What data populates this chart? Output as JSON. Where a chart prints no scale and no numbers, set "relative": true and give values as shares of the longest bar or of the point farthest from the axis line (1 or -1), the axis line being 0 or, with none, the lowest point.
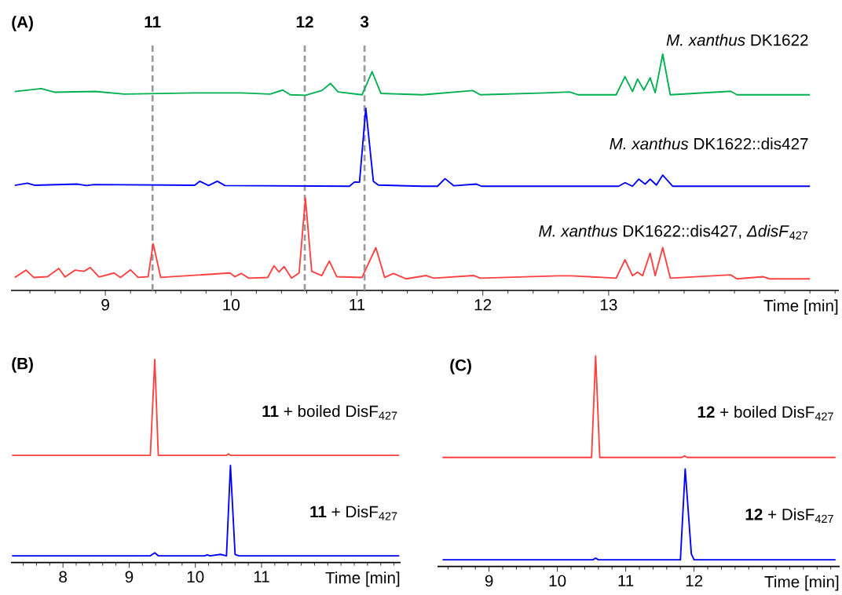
{
  "chart_data": [
    {
      "type": "line",
      "relative": true,
      "title": "(A)",
      "xlabel": "Time [min]",
      "xlim": [
        8.25,
        14.83
      ],
      "xticks": [
        {
          "value": 8.4,
          "label": null
        },
        {
          "value": 8.6,
          "label": null
        },
        {
          "value": 8.8,
          "label": null
        },
        9,
        {
          "value": 9.2,
          "label": null
        },
        {
          "value": 9.4,
          "label": null
        },
        {
          "value": 9.6,
          "label": null
        },
        {
          "value": 9.8,
          "label": null
        },
        10,
        {
          "value": 10.2,
          "label": null
        },
        {
          "value": 10.4,
          "label": null
        },
        {
          "value": 10.6,
          "label": null
        },
        {
          "value": 10.8,
          "label": null
        },
        11,
        {
          "value": 11.2,
          "label": null
        },
        {
          "value": 11.4,
          "label": null
        },
        {
          "value": 11.6,
          "label": null
        },
        {
          "value": 11.8,
          "label": null
        },
        12,
        {
          "value": 12.2,
          "label": null
        },
        {
          "value": 12.4,
          "label": null
        },
        {
          "value": 12.6,
          "label": null
        },
        {
          "value": 12.8,
          "label": null
        },
        13,
        {
          "value": 13.2,
          "label": null
        },
        {
          "value": 13.4,
          "label": null
        },
        {
          "value": 13.6,
          "label": null
        },
        {
          "value": 13.8,
          "label": null
        },
        {
          "value": 14,
          "label": null
        },
        {
          "value": 14.2,
          "label": null
        },
        {
          "value": 14.4,
          "label": null
        },
        {
          "value": 14.6,
          "label": null
        },
        {
          "value": 14.8,
          "label": null
        }
      ],
      "ref_lines": [
        {
          "axis": "x",
          "value": 9.375,
          "color": "#999999",
          "line_style": "dashed"
        },
        {
          "axis": "x",
          "value": 10.585,
          "color": "#999999",
          "line_style": "dashed"
        },
        {
          "axis": "x",
          "value": 11.06,
          "color": "#999999",
          "line_style": "dashed"
        }
      ],
      "annotations": [
        "11",
        "12",
        "3"
      ],
      "series": [
        {
          "name": "*M. xanthus* DK1622",
          "color": "#00b050",
          "x": [
            8.28,
            8.49,
            8.595,
            8.92,
            9.15,
            9.71,
            10.08,
            10.31,
            10.41,
            10.47,
            10.59,
            10.72,
            10.79,
            10.85,
            11.04,
            11.12,
            11.19,
            11.52,
            11.92,
            11.98,
            12.5,
            12.69,
            12.76,
            13.06,
            13.13,
            13.19,
            13.23,
            13.28,
            13.33,
            13.37,
            13.43,
            13.49,
            13.97,
            14.02,
            14.6
          ],
          "values": [
            0.842,
            0.854,
            0.839,
            0.842,
            0.831,
            0.836,
            0.836,
            0.831,
            0.848,
            0.828,
            0.826,
            0.846,
            0.876,
            0.84,
            0.828,
            0.926,
            0.834,
            0.828,
            0.846,
            0.828,
            0.836,
            0.84,
            0.828,
            0.828,
            0.905,
            0.842,
            0.895,
            0.848,
            0.9,
            0.837,
            1.0,
            0.828,
            0.843,
            0.828,
            0.828
          ]
        },
        {
          "name": "*M. xanthus* DK1622::dis427",
          "color": "#0000ff",
          "x": [
            8.28,
            8.38,
            8.44,
            8.78,
            8.85,
            8.91,
            9.71,
            9.75,
            9.82,
            9.89,
            9.95,
            10.94,
            10.98,
            11.02,
            11.07,
            11.13,
            11.17,
            11.52,
            11.64,
            11.7,
            11.77,
            11.95,
            11.99,
            13.08,
            13.13,
            13.19,
            13.24,
            13.29,
            13.33,
            13.38,
            13.43,
            13.51,
            14.6
          ],
          "values": [
            0.445,
            0.454,
            0.445,
            0.45,
            0.444,
            0.448,
            0.445,
            0.462,
            0.444,
            0.462,
            0.444,
            0.441,
            0.459,
            0.458,
            0.771,
            0.462,
            0.446,
            0.441,
            0.441,
            0.473,
            0.443,
            0.45,
            0.441,
            0.441,
            0.456,
            0.441,
            0.471,
            0.45,
            0.471,
            0.446,
            0.488,
            0.441,
            0.441
          ]
        },
        {
          "name": "*M. xanthus* DK1622::dis427, *ΔdisF*$_{427}$",
          "color": "#ff4040",
          "x": [
            8.28,
            8.37,
            8.43,
            8.54,
            8.63,
            8.68,
            8.76,
            8.83,
            8.88,
            8.95,
            9.07,
            9.12,
            9.2,
            9.26,
            9.34,
            9.38,
            9.44,
            9.99,
            10.03,
            10.08,
            10.14,
            10.29,
            10.34,
            10.38,
            10.42,
            10.48,
            10.54,
            10.59,
            10.64,
            10.72,
            10.78,
            10.84,
            11.04,
            11.15,
            11.22,
            11.29,
            11.39,
            11.55,
            11.61,
            11.93,
            11.98,
            12.6,
            12.7,
            13.06,
            13.13,
            13.19,
            13.23,
            13.27,
            13.33,
            13.37,
            13.43,
            13.49,
            13.97,
            14.02,
            14.23,
            14.28,
            14.6
          ],
          "values": [
            0.055,
            0.086,
            0.055,
            0.058,
            0.093,
            0.057,
            0.086,
            0.081,
            0.097,
            0.057,
            0.074,
            0.055,
            0.087,
            0.055,
            0.058,
            0.198,
            0.055,
            0.074,
            0.058,
            0.072,
            0.052,
            0.055,
            0.104,
            0.078,
            0.101,
            0.052,
            0.074,
            0.391,
            0.081,
            0.063,
            0.124,
            0.058,
            0.055,
            0.181,
            0.055,
            0.072,
            0.049,
            0.063,
            0.052,
            0.063,
            0.052,
            0.062,
            0.062,
            0.052,
            0.13,
            0.062,
            0.077,
            0.062,
            0.158,
            0.062,
            0.181,
            0.052,
            0.066,
            0.049,
            0.058,
            0.049,
            0.049
          ]
        }
      ]
    },
    {
      "type": "line",
      "relative": true,
      "title": "(B)",
      "xlabel": "Time [min]",
      "xlim": [
        7.215,
        13.1
      ],
      "xticks": [
        {
          "value": 7.4,
          "label": null
        },
        {
          "value": 7.6,
          "label": null
        },
        {
          "value": 7.8,
          "label": null
        },
        8,
        {
          "value": 8.2,
          "label": null
        },
        {
          "value": 8.4,
          "label": null
        },
        {
          "value": 8.6,
          "label": null
        },
        {
          "value": 8.8,
          "label": null
        },
        9,
        {
          "value": 9.2,
          "label": null
        },
        {
          "value": 9.4,
          "label": null
        },
        {
          "value": 9.6,
          "label": null
        },
        {
          "value": 9.8,
          "label": null
        },
        10,
        {
          "value": 10.2,
          "label": null
        },
        {
          "value": 10.4,
          "label": null
        },
        {
          "value": 10.6,
          "label": null
        },
        {
          "value": 10.8,
          "label": null
        },
        11,
        {
          "value": 11.2,
          "label": null
        },
        {
          "value": 11.4,
          "label": null
        },
        {
          "value": 11.6,
          "label": null
        },
        {
          "value": 11.8,
          "label": null
        },
        {
          "value": 12,
          "label": null
        },
        {
          "value": 12.2,
          "label": null
        },
        {
          "value": 12.4,
          "label": null
        },
        {
          "value": 12.6,
          "label": null
        },
        {
          "value": 12.8,
          "label": null
        },
        {
          "value": 13,
          "label": null
        }
      ],
      "series": [
        {
          "name": "**11** + boiled DisF$_{427}$",
          "color": "#ff4040",
          "x": [
            7.23,
            9.32,
            9.387,
            9.44,
            10.47,
            10.5,
            10.53,
            13.08
          ],
          "values": [
            0.528,
            0.528,
            1.0,
            0.528,
            0.528,
            0.535,
            0.528,
            0.528
          ]
        },
        {
          "name": "**11** + DisF$_{427}$",
          "color": "#0000ff",
          "x": [
            7.23,
            9.32,
            9.387,
            9.44,
            10.14,
            10.18,
            10.22,
            10.38,
            10.47,
            10.53,
            10.6,
            10.66,
            13.08
          ],
          "values": [
            0.033,
            0.033,
            0.048,
            0.033,
            0.033,
            0.038,
            0.033,
            0.04,
            0.033,
            0.478,
            0.04,
            0.033,
            0.033
          ]
        }
      ]
    },
    {
      "type": "line",
      "relative": true,
      "title": "(C)",
      "xlabel": "Time [min]",
      "xlim": [
        8.246,
        14.13
      ],
      "xticks": [
        {
          "value": 8.4,
          "label": null
        },
        {
          "value": 8.6,
          "label": null
        },
        {
          "value": 8.8,
          "label": null
        },
        9,
        {
          "value": 9.2,
          "label": null
        },
        {
          "value": 9.4,
          "label": null
        },
        {
          "value": 9.6,
          "label": null
        },
        {
          "value": 9.8,
          "label": null
        },
        10,
        {
          "value": 10.2,
          "label": null
        },
        {
          "value": 10.4,
          "label": null
        },
        {
          "value": 10.6,
          "label": null
        },
        {
          "value": 10.8,
          "label": null
        },
        11,
        {
          "value": 11.2,
          "label": null
        },
        {
          "value": 11.4,
          "label": null
        },
        {
          "value": 11.6,
          "label": null
        },
        {
          "value": 11.8,
          "label": null
        },
        12,
        {
          "value": 12.2,
          "label": null
        },
        {
          "value": 12.4,
          "label": null
        },
        {
          "value": 12.6,
          "label": null
        },
        {
          "value": 12.8,
          "label": null
        },
        {
          "value": 13,
          "label": null
        },
        {
          "value": 13.2,
          "label": null
        },
        {
          "value": 13.4,
          "label": null
        },
        {
          "value": 13.6,
          "label": null
        },
        {
          "value": 13.8,
          "label": null
        },
        {
          "value": 14,
          "label": null
        }
      ],
      "series": [
        {
          "name": "**12** + boiled DisF$_{427}$",
          "color": "#ff4040",
          "x": [
            8.32,
            10.5,
            10.56,
            10.62,
            11.82,
            11.86,
            11.9,
            14.07
          ],
          "values": [
            0.518,
            0.518,
            1.0,
            0.518,
            0.518,
            0.525,
            0.518,
            0.518
          ]
        },
        {
          "name": "**12** + DisF$_{427}$",
          "color": "#0000ff",
          "x": [
            8.32,
            10.52,
            10.56,
            10.6,
            11.8,
            11.87,
            11.96,
            12.0,
            14.07
          ],
          "values": [
            0.032,
            0.032,
            0.04,
            0.032,
            0.032,
            0.463,
            0.06,
            0.032,
            0.032
          ]
        }
      ]
    }
  ]
}
